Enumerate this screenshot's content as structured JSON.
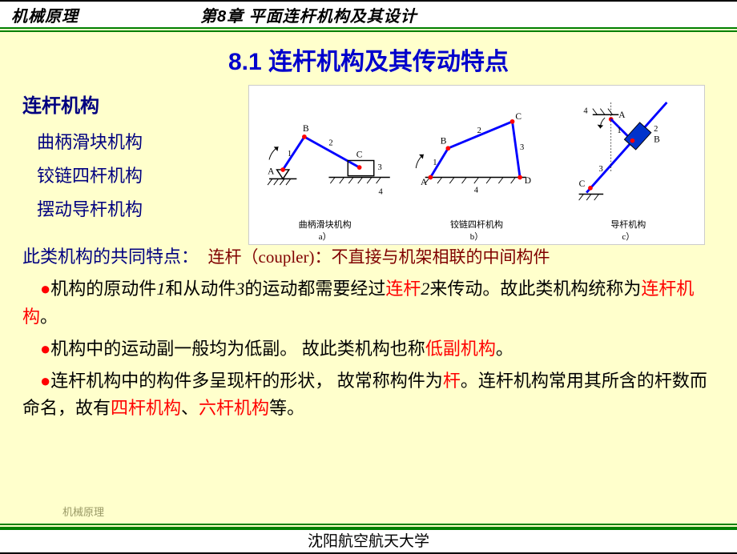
{
  "header": {
    "left": "机械原理",
    "center": "第8章 平面连杆机构及其设计"
  },
  "section_title": "8.1  连杆机构及其传动特点",
  "side_heading": "连杆机构",
  "mechanisms": [
    "曲柄滑块机构",
    "铰链四杆机构",
    "摆动导杆机构"
  ],
  "diagrams": {
    "background": "#ffffff",
    "link_color": "#0000ff",
    "joint_color": "#ff0000",
    "ground_color": "#000000",
    "label_color": "#000000",
    "slider_fill": "#0033cc",
    "cells": [
      {
        "caption_line1": "曲柄滑块机构",
        "caption_line2": "a）",
        "labels": {
          "A": "A",
          "B": "B",
          "C": "C",
          "n1": "1",
          "n2": "2",
          "n3": "3",
          "n4": "4"
        }
      },
      {
        "caption_line1": "铰链四杆机构",
        "caption_line2": "b）",
        "labels": {
          "A": "A",
          "B": "B",
          "C": "C",
          "D": "D",
          "n1": "1",
          "n2": "2",
          "n3": "3",
          "n4": "4"
        }
      },
      {
        "caption_line1": "导杆机构",
        "caption_line2": "c）",
        "labels": {
          "A": "A",
          "B": "B",
          "C": "C",
          "n1": "1",
          "n2": "2",
          "n3": "3",
          "n4": "4"
        }
      }
    ]
  },
  "feature_intro": "此类机构的共同特点：",
  "coupler_note": "连杆（coupler)：不直接与机架相联的中间构件",
  "bullets": [
    {
      "segments": [
        {
          "t": "机构的原动件",
          "c": "#000"
        },
        {
          "t": "1",
          "c": "#000",
          "i": true
        },
        {
          "t": "和从动件",
          "c": "#000"
        },
        {
          "t": "3",
          "c": "#000",
          "i": true
        },
        {
          "t": "的运动都需要经过",
          "c": "#000"
        },
        {
          "t": "连杆",
          "c": "#ff0000"
        },
        {
          "t": "2",
          "c": "#000",
          "i": true
        },
        {
          "t": "来传动。故此类机构统称为",
          "c": "#000"
        },
        {
          "t": "连杆机构",
          "c": "#ff0000"
        },
        {
          "t": "。",
          "c": "#000"
        }
      ]
    },
    {
      "segments": [
        {
          "t": "机构中的运动副一般均为低副。 故此类机构也称",
          "c": "#000"
        },
        {
          "t": "低副机构",
          "c": "#ff0000"
        },
        {
          "t": "。",
          "c": "#000"
        }
      ]
    },
    {
      "segments": [
        {
          "t": "连杆机构中的构件多呈现杆的形状， 故常称构件为",
          "c": "#000"
        },
        {
          "t": "杆",
          "c": "#ff0000"
        },
        {
          "t": "。连杆机构常用其所含的杆数而命名，故有",
          "c": "#000"
        },
        {
          "t": "四杆机构",
          "c": "#ff0000"
        },
        {
          "t": "、",
          "c": "#000"
        },
        {
          "t": "六杆机构",
          "c": "#ff0000"
        },
        {
          "t": "等。",
          "c": "#000"
        }
      ]
    }
  ],
  "footer_small": "机械原理",
  "footer": "沈阳航空航天大学"
}
